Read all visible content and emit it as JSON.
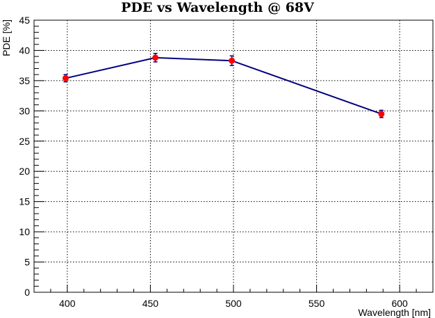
{
  "chart_data": {
    "type": "line",
    "title": "PDE vs Wavelength @  68V",
    "xlabel": "Wavelength [nm]",
    "ylabel": "PDE [%]",
    "xlim": [
      380,
      620
    ],
    "ylim": [
      0,
      45
    ],
    "xticks": [
      400,
      450,
      500,
      550,
      600
    ],
    "yticks": [
      0,
      5,
      10,
      15,
      20,
      25,
      30,
      35,
      40,
      45
    ],
    "grid": true,
    "series": [
      {
        "x": [
          399,
          453,
          499,
          589
        ],
        "y": [
          35.4,
          38.8,
          38.3,
          29.5
        ],
        "yerr": [
          0.6,
          0.7,
          0.8,
          0.6
        ],
        "line_color": "#000080",
        "marker_color": "#ff0000",
        "errorbar_color": "#000080"
      }
    ]
  }
}
